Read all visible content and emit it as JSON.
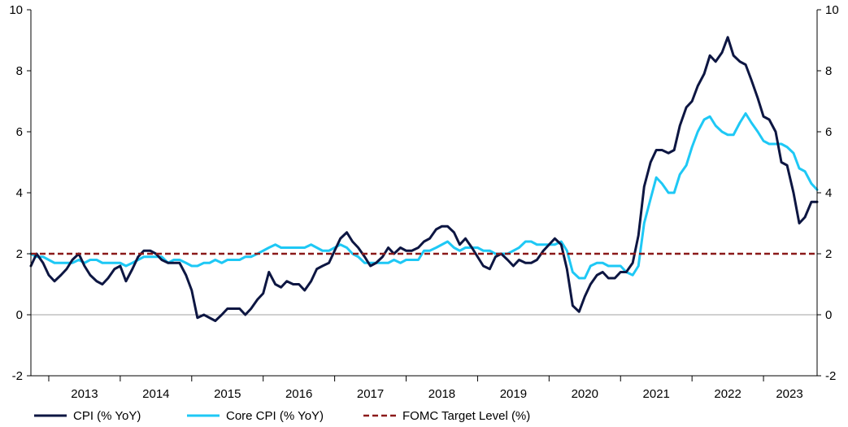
{
  "chart_data": {
    "type": "line",
    "title": "",
    "xlabel": "",
    "ylabel": "",
    "ylim": [
      -2,
      10
    ],
    "x_range": [
      2012.75,
      2023.75
    ],
    "yticks": [
      -2,
      0,
      2,
      4,
      6,
      8,
      10
    ],
    "yticks_right": [
      -2,
      0,
      2,
      4,
      6,
      8,
      10
    ],
    "xtick_labels": [
      "2013",
      "2014",
      "2015",
      "2016",
      "2017",
      "2018",
      "2019",
      "2020",
      "2021",
      "2022",
      "2023"
    ],
    "grid": false,
    "legend_position": "bottom",
    "series": [
      {
        "name": "CPI (% YoY)",
        "color": "#0d1642",
        "style": "solid",
        "points": [
          [
            2012.75,
            1.6
          ],
          [
            2012.83,
            2.0
          ],
          [
            2012.92,
            1.7
          ],
          [
            2013.0,
            1.3
          ],
          [
            2013.08,
            1.1
          ],
          [
            2013.17,
            1.3
          ],
          [
            2013.25,
            1.5
          ],
          [
            2013.33,
            1.8
          ],
          [
            2013.42,
            2.0
          ],
          [
            2013.5,
            1.6
          ],
          [
            2013.58,
            1.3
          ],
          [
            2013.67,
            1.1
          ],
          [
            2013.75,
            1.0
          ],
          [
            2013.83,
            1.2
          ],
          [
            2013.92,
            1.5
          ],
          [
            2014.0,
            1.6
          ],
          [
            2014.08,
            1.1
          ],
          [
            2014.17,
            1.5
          ],
          [
            2014.25,
            1.9
          ],
          [
            2014.33,
            2.1
          ],
          [
            2014.42,
            2.1
          ],
          [
            2014.5,
            2.0
          ],
          [
            2014.58,
            1.8
          ],
          [
            2014.67,
            1.7
          ],
          [
            2014.75,
            1.7
          ],
          [
            2014.83,
            1.7
          ],
          [
            2014.92,
            1.3
          ],
          [
            2015.0,
            0.8
          ],
          [
            2015.08,
            -0.1
          ],
          [
            2015.17,
            0.0
          ],
          [
            2015.25,
            -0.1
          ],
          [
            2015.33,
            -0.2
          ],
          [
            2015.42,
            0.0
          ],
          [
            2015.5,
            0.2
          ],
          [
            2015.58,
            0.2
          ],
          [
            2015.67,
            0.2
          ],
          [
            2015.75,
            0.0
          ],
          [
            2015.83,
            0.2
          ],
          [
            2015.92,
            0.5
          ],
          [
            2016.0,
            0.7
          ],
          [
            2016.08,
            1.4
          ],
          [
            2016.17,
            1.0
          ],
          [
            2016.25,
            0.9
          ],
          [
            2016.33,
            1.1
          ],
          [
            2016.42,
            1.0
          ],
          [
            2016.5,
            1.0
          ],
          [
            2016.58,
            0.8
          ],
          [
            2016.67,
            1.1
          ],
          [
            2016.75,
            1.5
          ],
          [
            2016.83,
            1.6
          ],
          [
            2016.92,
            1.7
          ],
          [
            2017.0,
            2.1
          ],
          [
            2017.08,
            2.5
          ],
          [
            2017.17,
            2.7
          ],
          [
            2017.25,
            2.4
          ],
          [
            2017.33,
            2.2
          ],
          [
            2017.42,
            1.9
          ],
          [
            2017.5,
            1.6
          ],
          [
            2017.58,
            1.7
          ],
          [
            2017.67,
            1.9
          ],
          [
            2017.75,
            2.2
          ],
          [
            2017.83,
            2.0
          ],
          [
            2017.92,
            2.2
          ],
          [
            2018.0,
            2.1
          ],
          [
            2018.08,
            2.1
          ],
          [
            2018.17,
            2.2
          ],
          [
            2018.25,
            2.4
          ],
          [
            2018.33,
            2.5
          ],
          [
            2018.42,
            2.8
          ],
          [
            2018.5,
            2.9
          ],
          [
            2018.58,
            2.9
          ],
          [
            2018.67,
            2.7
          ],
          [
            2018.75,
            2.3
          ],
          [
            2018.83,
            2.5
          ],
          [
            2018.92,
            2.2
          ],
          [
            2019.0,
            1.9
          ],
          [
            2019.08,
            1.6
          ],
          [
            2019.17,
            1.5
          ],
          [
            2019.25,
            1.9
          ],
          [
            2019.33,
            2.0
          ],
          [
            2019.42,
            1.8
          ],
          [
            2019.5,
            1.6
          ],
          [
            2019.58,
            1.8
          ],
          [
            2019.67,
            1.7
          ],
          [
            2019.75,
            1.7
          ],
          [
            2019.83,
            1.8
          ],
          [
            2019.92,
            2.1
          ],
          [
            2020.0,
            2.3
          ],
          [
            2020.08,
            2.5
          ],
          [
            2020.17,
            2.3
          ],
          [
            2020.25,
            1.5
          ],
          [
            2020.33,
            0.3
          ],
          [
            2020.42,
            0.1
          ],
          [
            2020.5,
            0.6
          ],
          [
            2020.58,
            1.0
          ],
          [
            2020.67,
            1.3
          ],
          [
            2020.75,
            1.4
          ],
          [
            2020.83,
            1.2
          ],
          [
            2020.92,
            1.2
          ],
          [
            2021.0,
            1.4
          ],
          [
            2021.08,
            1.4
          ],
          [
            2021.17,
            1.7
          ],
          [
            2021.25,
            2.6
          ],
          [
            2021.33,
            4.2
          ],
          [
            2021.42,
            5.0
          ],
          [
            2021.5,
            5.4
          ],
          [
            2021.58,
            5.4
          ],
          [
            2021.67,
            5.3
          ],
          [
            2021.75,
            5.4
          ],
          [
            2021.83,
            6.2
          ],
          [
            2021.92,
            6.8
          ],
          [
            2022.0,
            7.0
          ],
          [
            2022.08,
            7.5
          ],
          [
            2022.17,
            7.9
          ],
          [
            2022.25,
            8.5
          ],
          [
            2022.33,
            8.3
          ],
          [
            2022.42,
            8.6
          ],
          [
            2022.5,
            9.1
          ],
          [
            2022.58,
            8.5
          ],
          [
            2022.67,
            8.3
          ],
          [
            2022.75,
            8.2
          ],
          [
            2022.83,
            7.7
          ],
          [
            2022.92,
            7.1
          ],
          [
            2023.0,
            6.5
          ],
          [
            2023.08,
            6.4
          ],
          [
            2023.17,
            6.0
          ],
          [
            2023.25,
            5.0
          ],
          [
            2023.33,
            4.9
          ],
          [
            2023.42,
            4.0
          ],
          [
            2023.5,
            3.0
          ],
          [
            2023.58,
            3.2
          ],
          [
            2023.67,
            3.7
          ],
          [
            2023.75,
            3.7
          ]
        ]
      },
      {
        "name": "Core CPI (% YoY)",
        "color": "#1ec8f5",
        "style": "solid",
        "points": [
          [
            2012.75,
            2.0
          ],
          [
            2012.83,
            1.9
          ],
          [
            2012.92,
            1.9
          ],
          [
            2013.0,
            1.8
          ],
          [
            2013.08,
            1.7
          ],
          [
            2013.17,
            1.7
          ],
          [
            2013.25,
            1.7
          ],
          [
            2013.33,
            1.7
          ],
          [
            2013.42,
            1.8
          ],
          [
            2013.5,
            1.7
          ],
          [
            2013.58,
            1.8
          ],
          [
            2013.67,
            1.8
          ],
          [
            2013.75,
            1.7
          ],
          [
            2013.83,
            1.7
          ],
          [
            2013.92,
            1.7
          ],
          [
            2014.0,
            1.7
          ],
          [
            2014.08,
            1.6
          ],
          [
            2014.17,
            1.7
          ],
          [
            2014.25,
            1.8
          ],
          [
            2014.33,
            1.9
          ],
          [
            2014.42,
            1.9
          ],
          [
            2014.5,
            1.9
          ],
          [
            2014.58,
            1.9
          ],
          [
            2014.67,
            1.7
          ],
          [
            2014.75,
            1.8
          ],
          [
            2014.83,
            1.8
          ],
          [
            2014.92,
            1.7
          ],
          [
            2015.0,
            1.6
          ],
          [
            2015.08,
            1.6
          ],
          [
            2015.17,
            1.7
          ],
          [
            2015.25,
            1.7
          ],
          [
            2015.33,
            1.8
          ],
          [
            2015.42,
            1.7
          ],
          [
            2015.5,
            1.8
          ],
          [
            2015.58,
            1.8
          ],
          [
            2015.67,
            1.8
          ],
          [
            2015.75,
            1.9
          ],
          [
            2015.83,
            1.9
          ],
          [
            2015.92,
            2.0
          ],
          [
            2016.0,
            2.1
          ],
          [
            2016.08,
            2.2
          ],
          [
            2016.17,
            2.3
          ],
          [
            2016.25,
            2.2
          ],
          [
            2016.33,
            2.2
          ],
          [
            2016.42,
            2.2
          ],
          [
            2016.5,
            2.2
          ],
          [
            2016.58,
            2.2
          ],
          [
            2016.67,
            2.3
          ],
          [
            2016.75,
            2.2
          ],
          [
            2016.83,
            2.1
          ],
          [
            2016.92,
            2.1
          ],
          [
            2017.0,
            2.2
          ],
          [
            2017.08,
            2.3
          ],
          [
            2017.17,
            2.2
          ],
          [
            2017.25,
            2.0
          ],
          [
            2017.33,
            1.9
          ],
          [
            2017.42,
            1.7
          ],
          [
            2017.5,
            1.7
          ],
          [
            2017.58,
            1.7
          ],
          [
            2017.67,
            1.7
          ],
          [
            2017.75,
            1.7
          ],
          [
            2017.83,
            1.8
          ],
          [
            2017.92,
            1.7
          ],
          [
            2018.0,
            1.8
          ],
          [
            2018.08,
            1.8
          ],
          [
            2018.17,
            1.8
          ],
          [
            2018.25,
            2.1
          ],
          [
            2018.33,
            2.1
          ],
          [
            2018.42,
            2.2
          ],
          [
            2018.5,
            2.3
          ],
          [
            2018.58,
            2.4
          ],
          [
            2018.67,
            2.2
          ],
          [
            2018.75,
            2.1
          ],
          [
            2018.83,
            2.2
          ],
          [
            2018.92,
            2.2
          ],
          [
            2019.0,
            2.2
          ],
          [
            2019.08,
            2.1
          ],
          [
            2019.17,
            2.1
          ],
          [
            2019.25,
            2.0
          ],
          [
            2019.33,
            2.0
          ],
          [
            2019.42,
            2.0
          ],
          [
            2019.5,
            2.1
          ],
          [
            2019.58,
            2.2
          ],
          [
            2019.67,
            2.4
          ],
          [
            2019.75,
            2.4
          ],
          [
            2019.83,
            2.3
          ],
          [
            2019.92,
            2.3
          ],
          [
            2020.0,
            2.3
          ],
          [
            2020.08,
            2.3
          ],
          [
            2020.17,
            2.4
          ],
          [
            2020.25,
            2.1
          ],
          [
            2020.33,
            1.4
          ],
          [
            2020.42,
            1.2
          ],
          [
            2020.5,
            1.2
          ],
          [
            2020.58,
            1.6
          ],
          [
            2020.67,
            1.7
          ],
          [
            2020.75,
            1.7
          ],
          [
            2020.83,
            1.6
          ],
          [
            2020.92,
            1.6
          ],
          [
            2021.0,
            1.6
          ],
          [
            2021.08,
            1.4
          ],
          [
            2021.17,
            1.3
          ],
          [
            2021.25,
            1.6
          ],
          [
            2021.33,
            3.0
          ],
          [
            2021.42,
            3.8
          ],
          [
            2021.5,
            4.5
          ],
          [
            2021.58,
            4.3
          ],
          [
            2021.67,
            4.0
          ],
          [
            2021.75,
            4.0
          ],
          [
            2021.83,
            4.6
          ],
          [
            2021.92,
            4.9
          ],
          [
            2022.0,
            5.5
          ],
          [
            2022.08,
            6.0
          ],
          [
            2022.17,
            6.4
          ],
          [
            2022.25,
            6.5
          ],
          [
            2022.33,
            6.2
          ],
          [
            2022.42,
            6.0
          ],
          [
            2022.5,
            5.9
          ],
          [
            2022.58,
            5.9
          ],
          [
            2022.67,
            6.3
          ],
          [
            2022.75,
            6.6
          ],
          [
            2022.83,
            6.3
          ],
          [
            2022.92,
            6.0
          ],
          [
            2023.0,
            5.7
          ],
          [
            2023.08,
            5.6
          ],
          [
            2023.17,
            5.6
          ],
          [
            2023.25,
            5.6
          ],
          [
            2023.33,
            5.5
          ],
          [
            2023.42,
            5.3
          ],
          [
            2023.5,
            4.8
          ],
          [
            2023.58,
            4.7
          ],
          [
            2023.67,
            4.3
          ],
          [
            2023.75,
            4.1
          ]
        ]
      },
      {
        "name": "FOMC Target Level (%)",
        "color": "#8b1a1a",
        "style": "dashed",
        "points": [
          [
            2012.75,
            2.0
          ],
          [
            2023.75,
            2.0
          ]
        ]
      }
    ]
  }
}
